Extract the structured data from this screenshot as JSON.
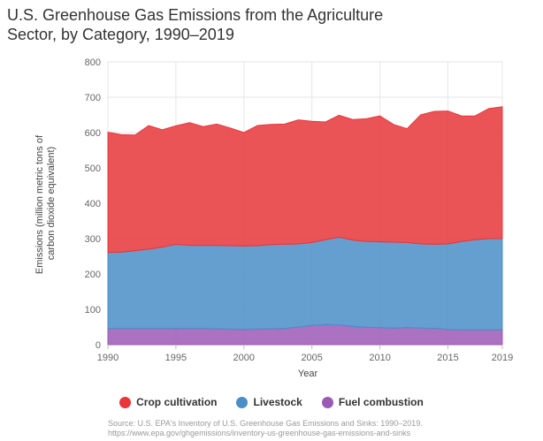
{
  "title_line1": "U.S. Greenhouse Gas Emissions from the Agriculture",
  "title_line2": "Sector, by Category, 1990–2019",
  "source_line1": "Source: U.S. EPA's Inventory of U.S. Greenhouse Gas Emissions and Sinks: 1990–2019.",
  "source_line2": "https://www.epa.gov/ghgemissions/inventory-us-greenhouse-gas-emissions-and-sinks",
  "chart_data": {
    "type": "area",
    "stacked": true,
    "xlabel": "Year",
    "ylabel": "Emissions (million metric tons of carbon dioxide equivalent)",
    "ylabel_line1": "Emissions (million metric tons of",
    "ylabel_line2": "carbon dioxide equivalent)",
    "ylim": [
      0,
      800
    ],
    "yticks": [
      0,
      100,
      200,
      300,
      400,
      500,
      600,
      700,
      800
    ],
    "xticks": [
      1990,
      1995,
      2000,
      2005,
      2010,
      2015,
      2019
    ],
    "grid": true,
    "legend_position": "bottom",
    "x": [
      1990,
      1991,
      1992,
      1993,
      1994,
      1995,
      1996,
      1997,
      1998,
      1999,
      2000,
      2001,
      2002,
      2003,
      2004,
      2005,
      2006,
      2007,
      2008,
      2009,
      2010,
      2011,
      2012,
      2013,
      2014,
      2015,
      2016,
      2017,
      2018,
      2019
    ],
    "series": [
      {
        "name": "Fuel combustion",
        "color": "#9b59b6",
        "values": [
          46,
          46,
          46,
          46,
          46,
          46,
          46,
          46,
          45,
          44,
          43,
          44,
          45,
          46,
          50,
          54,
          57,
          56,
          52,
          49,
          48,
          47,
          48,
          47,
          46,
          43,
          42,
          42,
          42,
          42
        ]
      },
      {
        "name": "Livestock",
        "color": "#4a8ec8",
        "values": [
          215,
          216,
          220,
          224,
          230,
          238,
          235,
          235,
          236,
          236,
          236,
          236,
          238,
          238,
          235,
          235,
          240,
          248,
          244,
          243,
          243,
          243,
          241,
          238,
          238,
          242,
          250,
          255,
          258,
          258
        ]
      },
      {
        "name": "Crop cultivation",
        "color": "#e8363a",
        "values": [
          340,
          332,
          327,
          350,
          332,
          335,
          347,
          336,
          343,
          333,
          321,
          340,
          340,
          340,
          351,
          343,
          333,
          345,
          341,
          347,
          356,
          333,
          322,
          365,
          376,
          376,
          355,
          350,
          368,
          373
        ]
      }
    ]
  }
}
